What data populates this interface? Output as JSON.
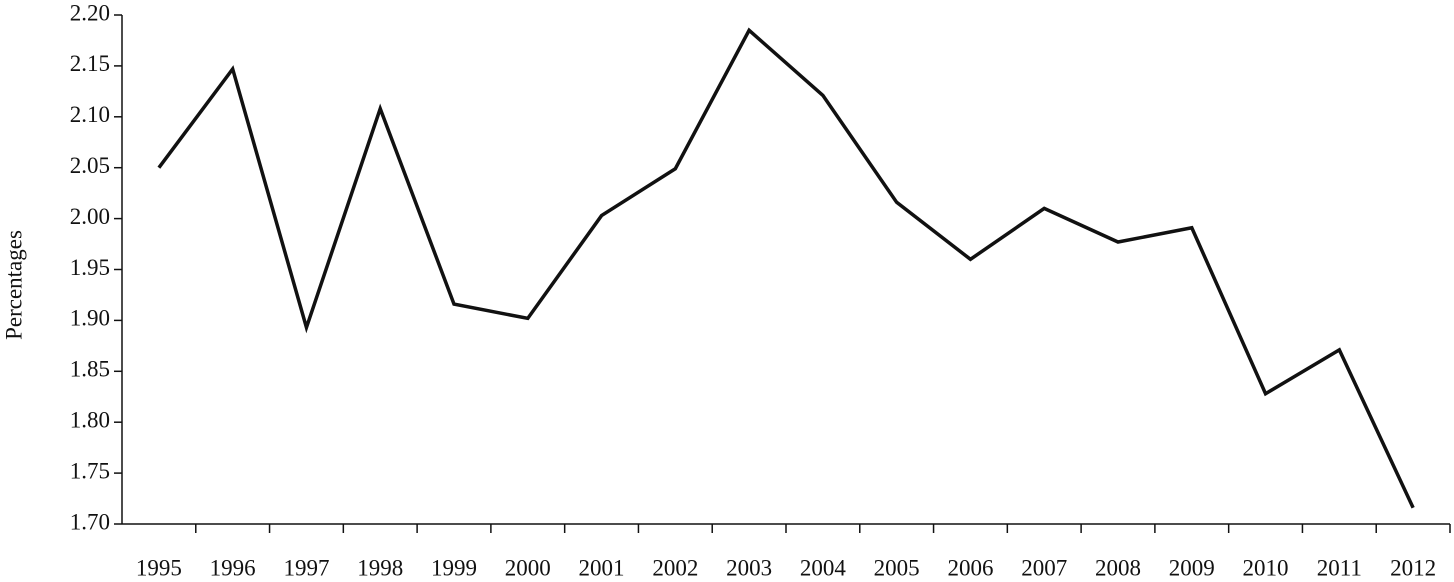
{
  "chart_data": {
    "type": "line",
    "y_label": "Percentages",
    "categories": [
      "1995",
      "1996",
      "1997",
      "1998",
      "1999",
      "2000",
      "2001",
      "2002",
      "2003",
      "2004",
      "2005",
      "2006",
      "2007",
      "2008",
      "2009",
      "2010",
      "2011",
      "2012"
    ],
    "values": [
      2.05,
      2.147,
      1.893,
      2.108,
      1.916,
      1.902,
      2.003,
      2.049,
      2.185,
      2.121,
      2.016,
      1.96,
      2.01,
      1.977,
      1.991,
      1.828,
      1.871,
      1.716
    ],
    "color": "#111111",
    "ylim": [
      1.7,
      2.2
    ],
    "yticks": [
      {
        "value": 1.7,
        "label": "1.70"
      },
      1.75,
      {
        "value": 1.8,
        "label": "1.80"
      },
      1.85,
      {
        "value": 1.9,
        "label": "1.90"
      },
      1.95,
      {
        "value": 2,
        "label": "2.00"
      },
      2.05,
      {
        "value": 2.1,
        "label": "2.10"
      },
      2.15,
      {
        "value": 2.2,
        "label": "2.20"
      }
    ],
    "grid": false
  }
}
